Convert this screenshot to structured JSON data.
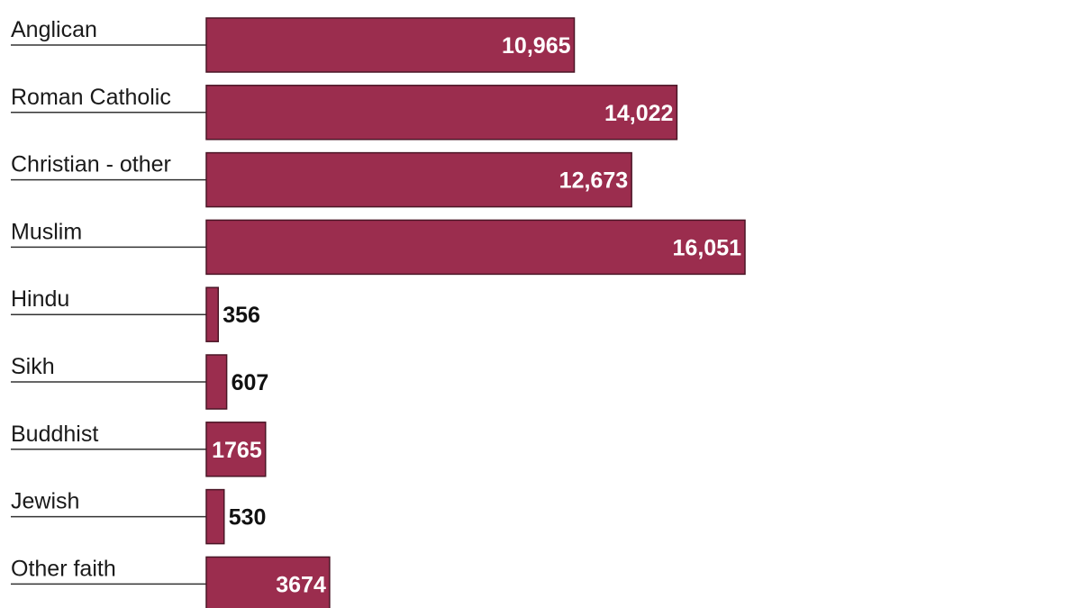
{
  "chart_data": {
    "type": "bar",
    "orientation": "horizontal",
    "categories": [
      "Anglican",
      "Roman Catholic",
      "Christian - other",
      "Muslim",
      "Hindu",
      "Sikh",
      "Buddhist",
      "Jewish",
      "Other faith"
    ],
    "values": [
      10965,
      14022,
      12673,
      16051,
      356,
      607,
      1765,
      530,
      3674
    ],
    "value_labels": [
      "10,965",
      "14,022",
      "12,673",
      "16,051",
      "356",
      "607",
      "1765",
      "530",
      "3674"
    ],
    "bar_color": "#9b2d4e",
    "label_inside_color": "#ffffff",
    "label_outside_color": "#111111",
    "title": "",
    "xlabel": "",
    "ylabel": "",
    "grid": false,
    "legend": "none"
  }
}
